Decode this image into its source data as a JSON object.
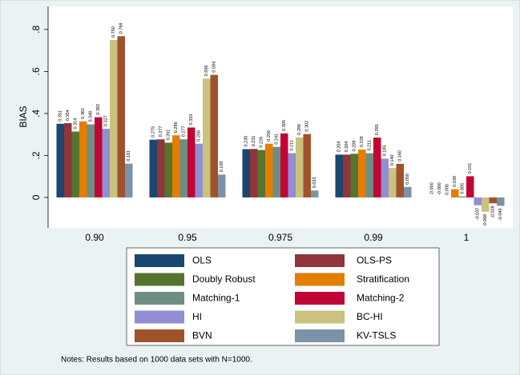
{
  "chart_data": {
    "type": "bar",
    "y_label": "BIAS",
    "note": "Notes: Results based on 1000 data sets with N=1000.",
    "categories": [
      "0.90",
      "0.95",
      "0.975",
      "0.99",
      "1"
    ],
    "ylim": [
      -0.145,
      0.91
    ],
    "yticks": [
      {
        "value": 0,
        "label": "0"
      },
      {
        "value": 0.2,
        "label": ".2"
      },
      {
        "value": 0.4,
        "label": ".4"
      },
      {
        "value": 0.6,
        "label": ".6"
      },
      {
        "value": 0.8,
        "label": ".8"
      }
    ],
    "grid": false,
    "series": [
      {
        "name": "OLS",
        "color": "#1a476f",
        "values": [
          0.351,
          0.275,
          0.23,
          0.204,
          0
        ],
        "value_labels": [
          "0.351",
          "0.275",
          "0.230",
          "0.204",
          "-0.000"
        ]
      },
      {
        "name": "OLS-PS",
        "color": "#90353b",
        "values": [
          0.354,
          0.277,
          0.231,
          0.204,
          0
        ],
        "value_labels": [
          "0.354",
          "0.277",
          "0.231",
          "0.204",
          "-0.000"
        ]
      },
      {
        "name": "Doubly Robust",
        "color": "#55752f",
        "values": [
          0.314,
          0.261,
          0.226,
          0.208,
          0
        ],
        "value_labels": [
          "0.314",
          "0.261",
          "0.226",
          "0.208",
          "0.000"
        ]
      },
      {
        "name": "Stratification",
        "color": "#e37e00",
        "values": [
          0.362,
          0.296,
          0.256,
          0.228,
          0.039
        ],
        "value_labels": [
          "0.362",
          "0.296",
          "0.256",
          "0.228",
          "0.039"
        ]
      },
      {
        "name": "Matching-1",
        "color": "#6e8e84",
        "values": [
          0.348,
          0.277,
          0.241,
          0.211,
          0.005
        ],
        "value_labels": [
          "0.348",
          "0.277",
          "0.241",
          "0.211",
          "0.005"
        ]
      },
      {
        "name": "Matching-2",
        "color": "#c10534",
        "values": [
          0.382,
          0.333,
          0.305,
          0.285,
          0.101
        ],
        "value_labels": [
          "0.382",
          "0.333",
          "0.305",
          "0.285",
          "0.101"
        ]
      },
      {
        "name": "HI",
        "color": "#938dd2",
        "values": [
          0.327,
          0.256,
          0.211,
          0.185,
          -0.037
        ],
        "value_labels": [
          "0.327",
          "0.256",
          "0.211",
          "0.185",
          "-0.037"
        ]
      },
      {
        "name": "BC-HI",
        "color": "#cac27e",
        "values": [
          0.75,
          0.566,
          0.286,
          0.14,
          -0.068
        ],
        "value_labels": [
          "0.750",
          "0.566",
          "0.286",
          "0.140",
          "-0.068"
        ]
      },
      {
        "name": "BVN",
        "color": "#a0522d",
        "values": [
          0.768,
          0.584,
          0.302,
          0.16,
          -0.028
        ],
        "value_labels": [
          "0.768",
          "0.584",
          "0.302",
          "0.160",
          "-0.028"
        ]
      },
      {
        "name": "KV-TSLS",
        "color": "#7b92a8",
        "values": [
          0.161,
          0.109,
          0.033,
          0.05,
          -0.04
        ],
        "value_labels": [
          "0.161",
          "0.109",
          "0.033",
          "0.050",
          "-0.040"
        ]
      }
    ]
  }
}
